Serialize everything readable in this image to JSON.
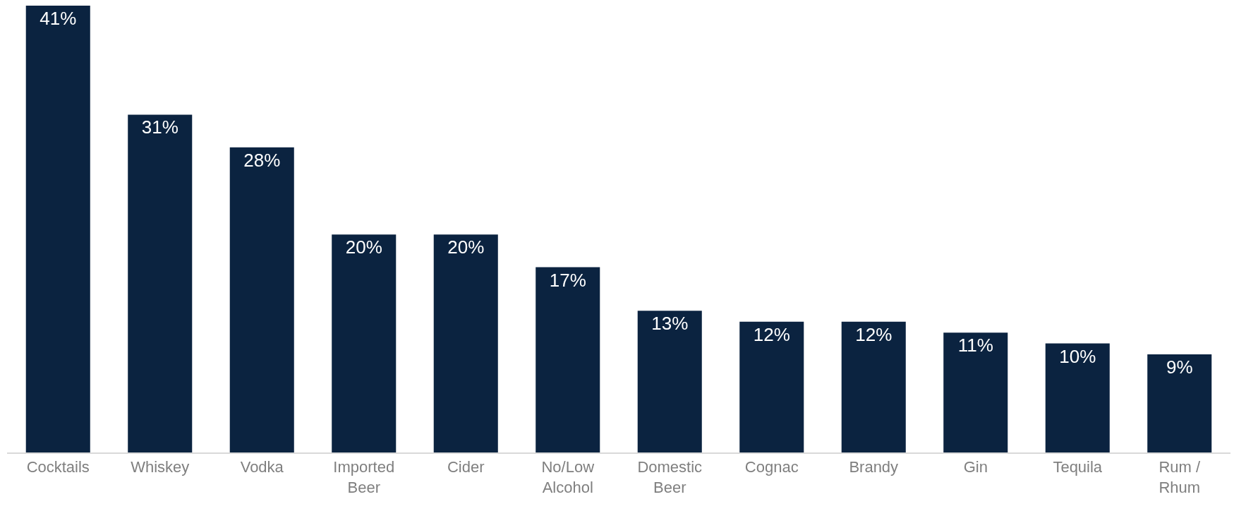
{
  "chart_data": {
    "type": "bar",
    "categories": [
      "Cocktails",
      "Whiskey",
      "Vodka",
      "Imported Beer",
      "Cider",
      "No/Low Alcohol",
      "Domestic Beer",
      "Cognac",
      "Brandy",
      "Gin",
      "Tequila",
      "Rum / Rhum"
    ],
    "values": [
      41,
      31,
      28,
      20,
      20,
      17,
      13,
      12,
      12,
      11,
      10,
      9
    ],
    "value_labels": [
      "41%",
      "31%",
      "28%",
      "20%",
      "20%",
      "17%",
      "13%",
      "12%",
      "12%",
      "11%",
      "10%",
      "9%"
    ],
    "color": "#0b2340"
  }
}
